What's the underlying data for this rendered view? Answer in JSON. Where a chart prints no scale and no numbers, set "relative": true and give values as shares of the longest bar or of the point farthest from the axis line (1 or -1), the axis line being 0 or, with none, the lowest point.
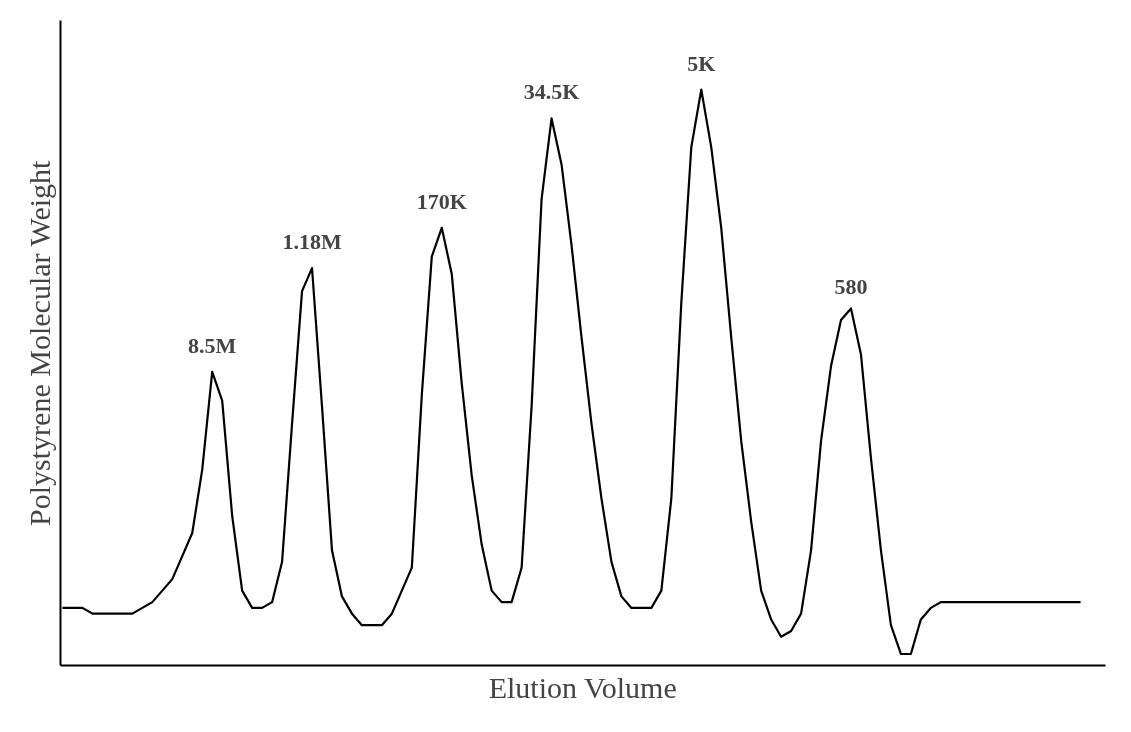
{
  "chart_data": {
    "type": "line",
    "relative": true,
    "xlabel": "Elution Volume",
    "ylabel": "Polystyrene Molecular Weight",
    "color": "#000000",
    "marker": "none",
    "line_style": "solid",
    "categories": [
      null,
      null,
      null,
      null,
      null,
      null,
      null,
      null,
      null,
      null,
      null,
      null,
      null,
      null,
      null,
      null,
      null,
      null,
      null,
      null,
      null,
      null,
      null,
      null,
      null,
      null,
      null,
      null,
      null,
      null,
      null,
      null,
      null,
      null,
      null,
      null,
      null,
      null,
      null,
      null,
      null,
      null,
      null,
      null,
      null,
      null,
      null,
      null,
      null,
      null,
      null,
      null,
      null,
      null,
      null,
      null,
      null,
      null,
      null,
      null,
      null,
      null,
      null,
      null,
      null,
      null,
      null,
      null,
      null,
      null,
      null,
      null,
      null,
      null,
      null,
      null,
      null,
      null,
      null,
      null,
      null,
      null,
      null,
      null,
      null,
      null,
      null,
      null,
      null,
      null,
      null,
      null,
      null,
      null,
      null,
      null,
      null,
      null,
      null,
      null,
      null,
      null,
      null
    ],
    "values": [
      0.1,
      0.1,
      0.1,
      0.09,
      0.09,
      0.09,
      0.09,
      0.09,
      0.1,
      0.11,
      0.13,
      0.15,
      0.19,
      0.23,
      0.34,
      0.51,
      0.46,
      0.26,
      0.13,
      0.1,
      0.1,
      0.11,
      0.18,
      0.42,
      0.65,
      0.69,
      0.45,
      0.2,
      0.12,
      0.09,
      0.07,
      0.07,
      0.07,
      0.09,
      0.13,
      0.17,
      0.47,
      0.71,
      0.76,
      0.68,
      0.49,
      0.33,
      0.21,
      0.13,
      0.11,
      0.11,
      0.17,
      0.45,
      0.81,
      0.95,
      0.87,
      0.73,
      0.57,
      0.42,
      0.29,
      0.18,
      0.12,
      0.1,
      0.1,
      0.1,
      0.13,
      0.29,
      0.63,
      0.9,
      1.0,
      0.9,
      0.76,
      0.57,
      0.39,
      0.25,
      0.13,
      0.08,
      0.05,
      0.06,
      0.09,
      0.2,
      0.39,
      0.52,
      0.6,
      0.62,
      0.54,
      0.36,
      0.2,
      0.07,
      0.02,
      0.02,
      0.08,
      0.1,
      0.11,
      0.11,
      0.11,
      0.11,
      0.11,
      0.11,
      0.11,
      0.11,
      0.11,
      0.11,
      0.11,
      0.11,
      0.11,
      0.11,
      0.11
    ],
    "annotations": [
      "8.5M",
      "1.18M",
      "170K",
      "34.5K",
      "5K",
      "580"
    ]
  }
}
